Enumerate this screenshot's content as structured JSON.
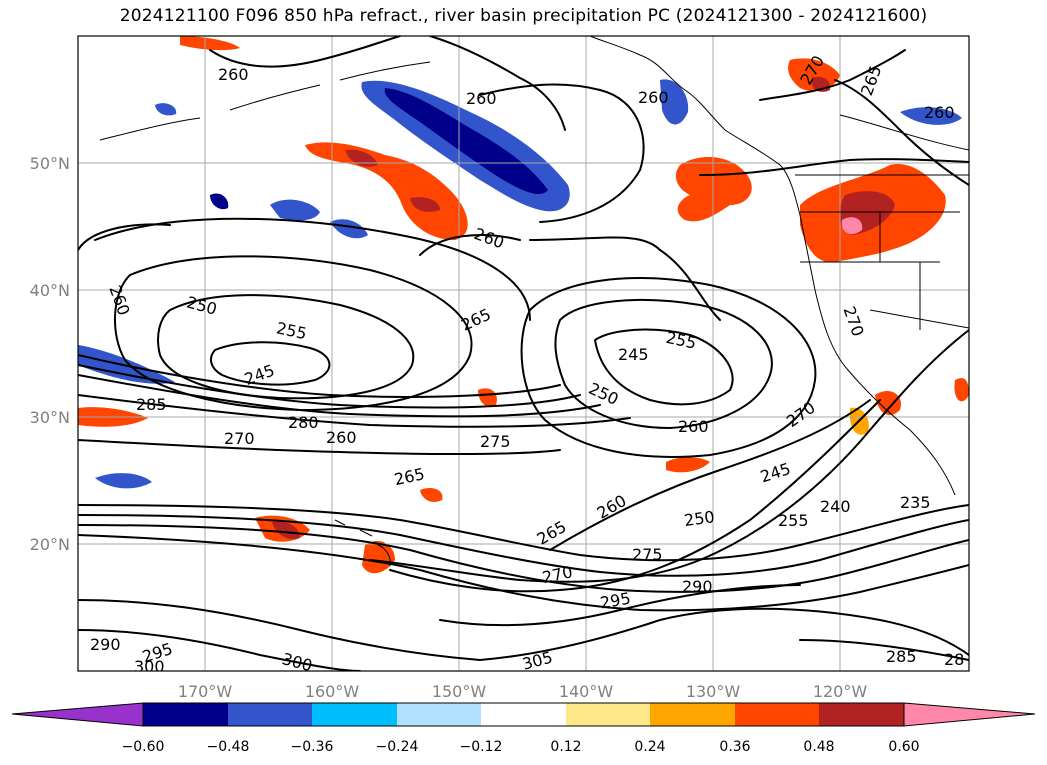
{
  "title": "2024121100 F096 850 hPa refract., river basin precipitation PC (2024121300 - 2024121600)",
  "map": {
    "lon_labels": [
      "170°W",
      "160°W",
      "150°W",
      "140°W",
      "130°W",
      "120°W"
    ],
    "lat_labels": [
      "50°N",
      "40°N",
      "30°N",
      "20°N"
    ],
    "contour_labels": [
      "260",
      "260",
      "260",
      "260",
      "270",
      "265",
      "260",
      "260",
      "250",
      "255",
      "245",
      "265",
      "245",
      "255",
      "250",
      "285",
      "280",
      "270",
      "260",
      "275",
      "260",
      "270",
      "265",
      "245",
      "270",
      "240",
      "235",
      "265",
      "260",
      "250",
      "255",
      "270",
      "275",
      "290",
      "295",
      "305",
      "290",
      "295",
      "300",
      "300",
      "285",
      "28"
    ],
    "shading_colors": {
      "strong_negative": "#00008b",
      "negative": "#3355cc",
      "weak_negative": "#00bfff",
      "weakest_negative": "#b0e2ff",
      "weak_positive": "#ffe88a",
      "positive": "#ffa500",
      "strong_positive": "#ff4500",
      "stronger_positive": "#b22222",
      "max_positive": "#ff88aa"
    }
  },
  "colorbar": {
    "ticks": [
      "−0.60",
      "−0.48",
      "−0.36",
      "−0.24",
      "−0.12",
      "0.12",
      "0.24",
      "0.36",
      "0.48",
      "0.60"
    ],
    "colors": [
      "#9932cc",
      "#00008b",
      "#3355cc",
      "#00bfff",
      "#b0e2ff",
      "#ffffff",
      "#ffe88a",
      "#ffa500",
      "#ff4500",
      "#b22222",
      "#ff88aa"
    ]
  }
}
